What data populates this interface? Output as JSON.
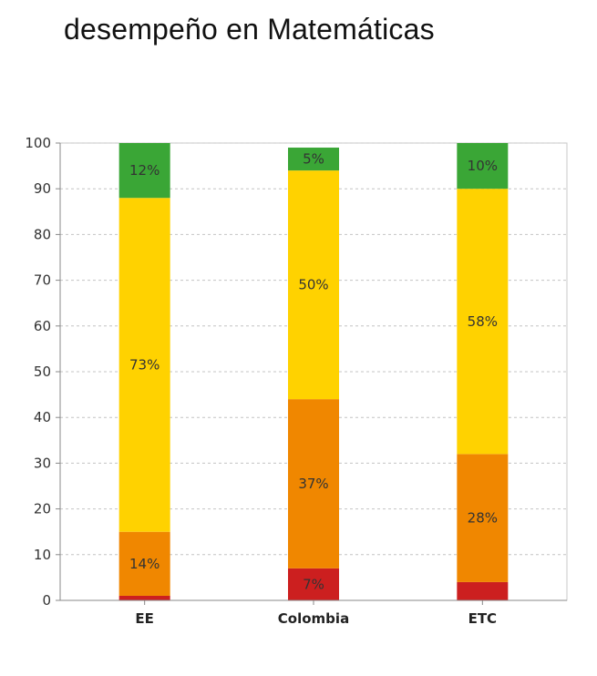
{
  "page": {
    "title": "desempeño en Matemáticas"
  },
  "chart_data": {
    "type": "bar",
    "stacked": true,
    "categories": [
      "EE",
      "Colombia",
      "ETC"
    ],
    "series": [
      {
        "color": "#cc1f1f",
        "values": [
          1,
          7,
          4
        ],
        "labels": [
          "",
          "7%",
          ""
        ]
      },
      {
        "color": "#f08700",
        "values": [
          14,
          37,
          28
        ],
        "labels": [
          "14%",
          "37%",
          "28%"
        ]
      },
      {
        "color": "#ffd200",
        "values": [
          73,
          50,
          58
        ],
        "labels": [
          "73%",
          "50%",
          "58%"
        ]
      },
      {
        "color": "#3aa636",
        "values": [
          12,
          5,
          10
        ],
        "labels": [
          "12%",
          "5%",
          "10%"
        ]
      }
    ],
    "ylim": [
      0,
      100
    ],
    "yticks": [
      "0",
      "10",
      "20",
      "30",
      "40",
      "50",
      "60",
      "70",
      "80",
      "90",
      "100"
    ],
    "grid": true,
    "legend": "none",
    "xlabel": "",
    "ylabel": ""
  }
}
